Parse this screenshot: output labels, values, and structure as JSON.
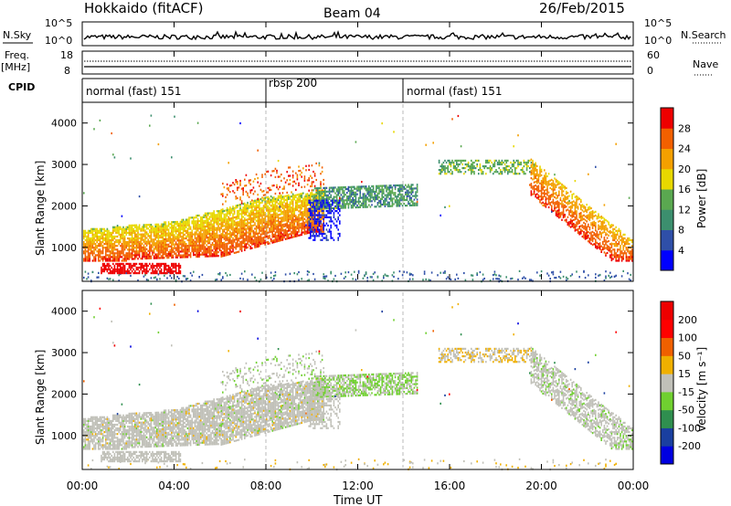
{
  "header": {
    "title": "Hokkaido (fitACF)",
    "beam": "Beam 04",
    "date": "26/Feb/2015"
  },
  "left_labels": {
    "nsky": "N.Sky",
    "freq": "Freq.",
    "mhz": "[MHz]",
    "cpid": "CPID"
  },
  "right_labels": {
    "nsearch": "N.Search",
    "nave": "Nave"
  },
  "chart_data": [
    {
      "type": "line",
      "name": "noise",
      "ylim_labels": [
        "10^0",
        "10^5"
      ],
      "right_ylim_labels": [
        "10^0",
        "10^5"
      ],
      "x_range_hours": [
        0,
        24
      ]
    },
    {
      "type": "line",
      "name": "frequency",
      "ytick_labels": [
        "8",
        "18"
      ],
      "right_ytick_labels": [
        "0",
        "60"
      ],
      "x_range_hours": [
        0,
        24
      ]
    },
    {
      "type": "timeline",
      "name": "cpid",
      "segments": [
        {
          "start": 0.0,
          "end": 8.0,
          "label": "normal (fast) 151"
        },
        {
          "start": 8.0,
          "end": 14.0,
          "label": "rbsp 200"
        },
        {
          "start": 14.0,
          "end": 24.0,
          "label": "normal (fast) 151"
        }
      ]
    },
    {
      "type": "heatmap",
      "name": "power",
      "ylabel": "Slant Range [km]",
      "ylim": [
        180,
        4500
      ],
      "yticks": [
        1000,
        2000,
        3000,
        4000
      ],
      "colorbar_label": "Power [dB]",
      "colorbar_ticks": [
        "28",
        "24",
        "20",
        "16",
        "12",
        "8",
        "4"
      ],
      "colors": [
        "#0000ff",
        "#2f4fa8",
        "#3c8f6e",
        "#5aa850",
        "#e8d800",
        "#f4a000",
        "#f26000",
        "#ee0000"
      ]
    },
    {
      "type": "heatmap",
      "name": "velocity",
      "ylabel": "Slant Range [km]",
      "ylim": [
        180,
        4500
      ],
      "yticks": [
        1000,
        2000,
        3000,
        4000
      ],
      "colorbar_label": "Velocity [m s⁻¹]",
      "colorbar_ticks": [
        "200",
        "100",
        "50",
        "15",
        "-15",
        "-50",
        "-100",
        "-200"
      ],
      "colors": [
        "#0000e0",
        "#1a3fa0",
        "#2f8f4f",
        "#70d030",
        "#c0c0b8",
        "#f0b000",
        "#f06000",
        "#ff0000",
        "#ee0000"
      ],
      "ground_scatter_color": "#c0c0b8"
    }
  ],
  "x_axis": {
    "label": "Time UT",
    "ticks": [
      "00:00",
      "04:00",
      "08:00",
      "12:00",
      "16:00",
      "20:00",
      "00:00"
    ]
  }
}
